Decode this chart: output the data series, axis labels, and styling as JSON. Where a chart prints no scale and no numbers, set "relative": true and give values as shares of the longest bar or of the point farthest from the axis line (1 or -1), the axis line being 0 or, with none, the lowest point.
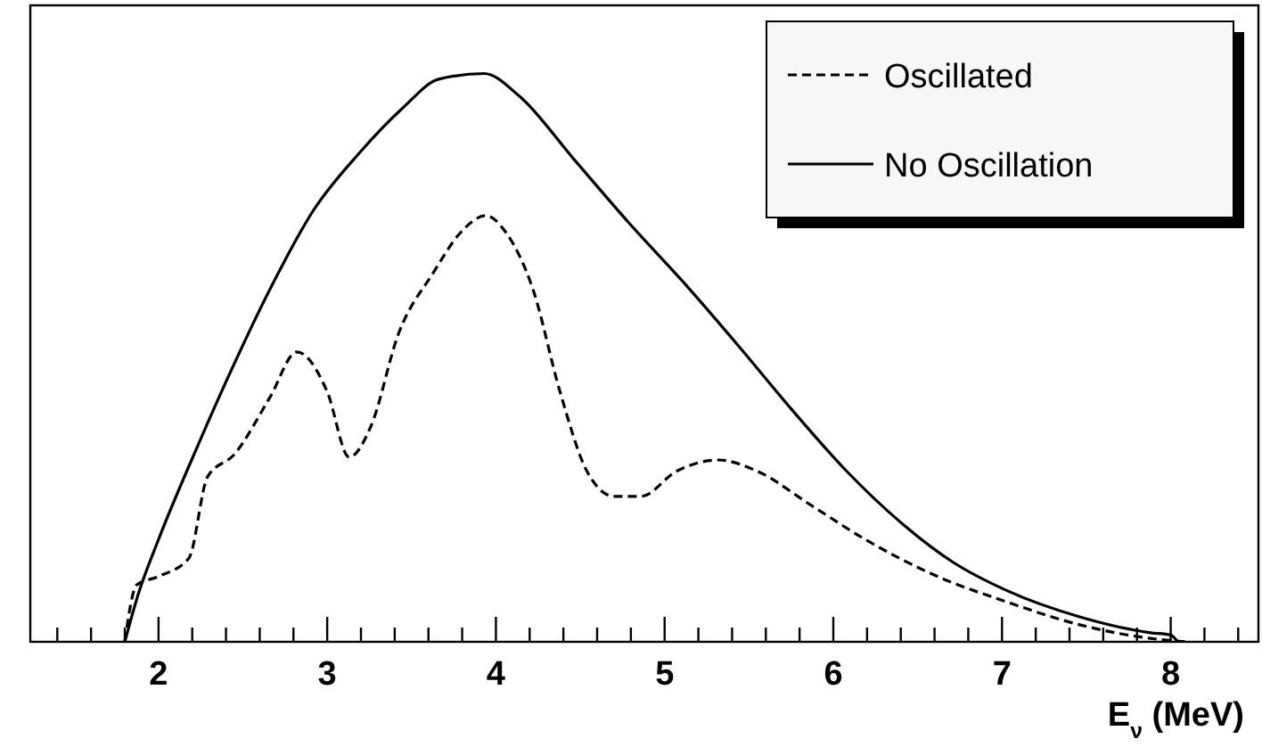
{
  "chart_data": {
    "type": "line",
    "relative": true,
    "xlabel": "E$_{ν}$ (MeV)",
    "xlim": [
      1.24,
      8.52
    ],
    "xticks": [
      2,
      3,
      4,
      5,
      6,
      7,
      8,
      {
        "value": 1.4,
        "label": null
      },
      {
        "value": 1.6,
        "label": null
      },
      {
        "value": 1.8,
        "label": null
      },
      {
        "value": 2.2,
        "label": null
      },
      {
        "value": 2.4,
        "label": null
      },
      {
        "value": 2.6,
        "label": null
      },
      {
        "value": 2.8,
        "label": null
      },
      {
        "value": 3.2,
        "label": null
      },
      {
        "value": 3.4,
        "label": null
      },
      {
        "value": 3.6,
        "label": null
      },
      {
        "value": 3.8,
        "label": null
      },
      {
        "value": 4.2,
        "label": null
      },
      {
        "value": 4.4,
        "label": null
      },
      {
        "value": 4.6,
        "label": null
      },
      {
        "value": 4.8,
        "label": null
      },
      {
        "value": 5.2,
        "label": null
      },
      {
        "value": 5.4,
        "label": null
      },
      {
        "value": 5.6,
        "label": null
      },
      {
        "value": 5.8,
        "label": null
      },
      {
        "value": 6.2,
        "label": null
      },
      {
        "value": 6.4,
        "label": null
      },
      {
        "value": 6.6,
        "label": null
      },
      {
        "value": 6.8,
        "label": null
      },
      {
        "value": 7.2,
        "label": null
      },
      {
        "value": 7.4,
        "label": null
      },
      {
        "value": 7.6,
        "label": null
      },
      {
        "value": 7.8,
        "label": null
      },
      {
        "value": 8.2,
        "label": null
      },
      {
        "value": 8.4,
        "label": null
      }
    ],
    "legend": "top right",
    "series": [
      {
        "name": "Oscillated",
        "color": "#000000",
        "line_style": "dashed",
        "x": [
          1.8,
          1.87,
          2.0,
          2.18,
          2.29,
          2.45,
          2.66,
          2.82,
          3.0,
          3.13,
          3.26,
          3.42,
          3.63,
          3.79,
          3.94,
          4.06,
          4.22,
          4.38,
          4.54,
          4.7,
          4.86,
          5.07,
          5.32,
          5.55,
          5.87,
          6.19,
          6.61,
          7.03,
          7.46,
          7.88,
          8.09
        ],
        "values": [
          0,
          0.1,
          0.115,
          0.147,
          0.29,
          0.33,
          0.43,
          0.51,
          0.44,
          0.325,
          0.38,
          0.54,
          0.65,
          0.72,
          0.75,
          0.72,
          0.62,
          0.44,
          0.3,
          0.256,
          0.256,
          0.3,
          0.32,
          0.3,
          0.24,
          0.18,
          0.116,
          0.07,
          0.03,
          0.006,
          0
        ]
      },
      {
        "name": "No Oscillation",
        "color": "#000000",
        "line_style": "solid",
        "x": [
          1.8,
          1.88,
          2.0,
          2.24,
          2.45,
          2.66,
          2.92,
          3.19,
          3.45,
          3.66,
          3.93,
          4.14,
          4.46,
          4.78,
          5.12,
          5.44,
          5.75,
          6.08,
          6.4,
          6.71,
          7.03,
          7.46,
          7.88,
          8.0,
          8.04
        ],
        "values": [
          0,
          0.084,
          0.18,
          0.35,
          0.49,
          0.62,
          0.76,
          0.86,
          0.94,
          0.99,
          1.0,
          0.96,
          0.85,
          0.74,
          0.63,
          0.52,
          0.41,
          0.3,
          0.21,
          0.14,
          0.09,
          0.044,
          0.016,
          0.012,
          0
        ]
      }
    ]
  }
}
